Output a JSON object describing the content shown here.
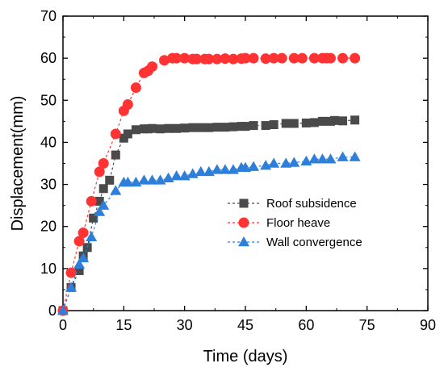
{
  "chart_data": {
    "type": "scatter",
    "title": "",
    "xlabel": "Time (days)",
    "ylabel": "Displacement(mm)",
    "xlim": [
      0,
      90
    ],
    "ylim": [
      0,
      70
    ],
    "xticks": [
      0,
      15,
      30,
      45,
      60,
      75,
      90
    ],
    "yticks": [
      0,
      10,
      20,
      30,
      40,
      50,
      60,
      70
    ],
    "grid": false,
    "legend_position": "center-right",
    "series": [
      {
        "name": "Roof subsidence",
        "marker": "square",
        "color": "#4a4a4a",
        "line": "dashed",
        "x": [
          0,
          2,
          4,
          5,
          6,
          7.5,
          9,
          10,
          11.5,
          13,
          15,
          16,
          18,
          20,
          21,
          22,
          24,
          26,
          28,
          30,
          32,
          34,
          36,
          38,
          40,
          42,
          44,
          45,
          47,
          50,
          52,
          55,
          57,
          60,
          62,
          64,
          66,
          67,
          69,
          72
        ],
        "y": [
          0,
          5.5,
          9.5,
          13,
          15,
          22,
          26,
          29,
          31,
          37,
          41,
          42,
          43,
          43.2,
          43.2,
          43.3,
          43.2,
          43.3,
          43.3,
          43.4,
          43.5,
          43.5,
          43.5,
          43.6,
          43.6,
          43.7,
          43.8,
          43.8,
          44,
          44,
          44.2,
          44.5,
          44.5,
          44.6,
          44.7,
          45,
          45,
          45.2,
          45.1,
          45.3
        ]
      },
      {
        "name": "Floor heave",
        "marker": "circle",
        "color": "#ff3333",
        "line": "dashed",
        "x": [
          0,
          2,
          4,
          5,
          7,
          9,
          10,
          13,
          15,
          16,
          18,
          20,
          21,
          22,
          25,
          27,
          28,
          30,
          32,
          33,
          35,
          36,
          38,
          40,
          42,
          44,
          45,
          47,
          50,
          52,
          54,
          57,
          59,
          62,
          64,
          65,
          66,
          69,
          72
        ],
        "y": [
          0,
          9,
          16.5,
          18.5,
          26,
          33,
          35,
          42,
          47.5,
          49,
          53,
          56.5,
          57,
          58,
          59.5,
          60,
          60,
          60,
          59.8,
          59.8,
          59.8,
          59.8,
          59.8,
          59.9,
          59.8,
          59.9,
          60,
          60,
          59.9,
          60,
          60,
          60,
          60,
          60,
          60,
          60,
          60,
          60,
          60
        ]
      },
      {
        "name": "Wall convergence",
        "marker": "triangle",
        "color": "#2e7fd9",
        "line": "dashed",
        "x": [
          0,
          2,
          4,
          5,
          7,
          9,
          10,
          13,
          15,
          16,
          18,
          20,
          22,
          24,
          26,
          28,
          30,
          32,
          34,
          36,
          38,
          40,
          42,
          44,
          45,
          47,
          50,
          52,
          55,
          57,
          60,
          62,
          64,
          66,
          69,
          72
        ],
        "y": [
          0,
          5.5,
          11,
          12.5,
          17.5,
          23.5,
          25,
          28.5,
          30.5,
          30.5,
          30.5,
          31,
          31,
          31,
          31.5,
          32,
          32,
          32.5,
          33,
          33,
          33.5,
          33.5,
          33.5,
          34,
          34,
          34.2,
          34.5,
          35,
          35,
          35.2,
          35.5,
          36,
          36,
          36,
          36.5,
          36.5
        ]
      }
    ]
  }
}
